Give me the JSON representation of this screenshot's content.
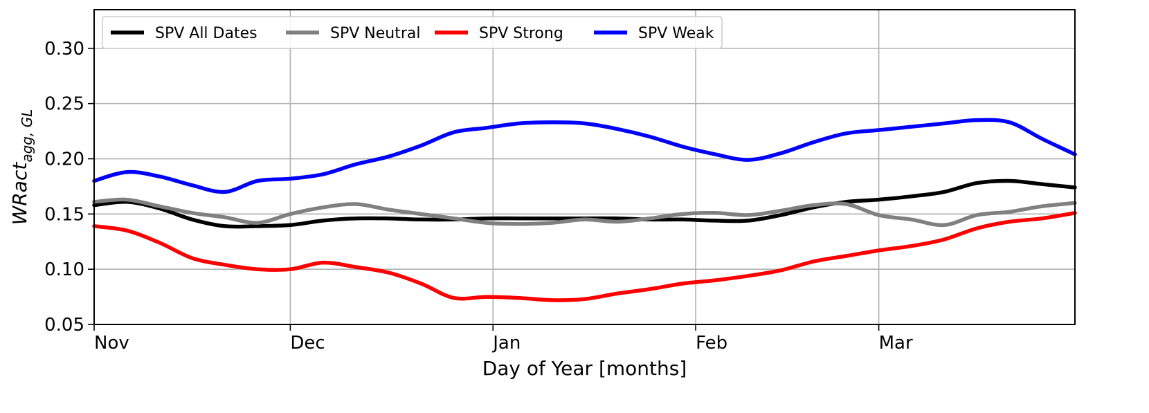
{
  "chart_data": {
    "type": "line",
    "xlabel": "Day of Year [months]",
    "ylabel": "WRact",
    "ylabel_sub": "agg, GL",
    "xlim": [
      0,
      150
    ],
    "ylim": [
      0.05,
      0.335
    ],
    "xticks": [
      {
        "value": 0,
        "label": "Nov"
      },
      {
        "value": 30,
        "label": "Dec"
      },
      {
        "value": 61,
        "label": "Jan"
      },
      {
        "value": 92,
        "label": "Feb"
      },
      {
        "value": 120,
        "label": "Mar"
      }
    ],
    "yticks": [
      {
        "value": 0.05,
        "label": "0.05"
      },
      {
        "value": 0.1,
        "label": "0.10"
      },
      {
        "value": 0.15,
        "label": "0.15"
      },
      {
        "value": 0.2,
        "label": "0.20"
      },
      {
        "value": 0.25,
        "label": "0.25"
      },
      {
        "value": 0.3,
        "label": "0.30"
      }
    ],
    "grid": true,
    "legend_position": "top-left",
    "series": [
      {
        "name": "SPV All Dates",
        "color": "#000000",
        "x": [
          0,
          5,
          10,
          15,
          20,
          25,
          30,
          35,
          40,
          45,
          50,
          55,
          60,
          65,
          70,
          75,
          80,
          85,
          90,
          95,
          100,
          105,
          110,
          115,
          120,
          125,
          130,
          135,
          140,
          145,
          150
        ],
        "y": [
          0.158,
          0.161,
          0.155,
          0.145,
          0.139,
          0.139,
          0.14,
          0.144,
          0.146,
          0.146,
          0.145,
          0.145,
          0.146,
          0.146,
          0.146,
          0.146,
          0.146,
          0.145,
          0.145,
          0.144,
          0.144,
          0.149,
          0.156,
          0.161,
          0.163,
          0.166,
          0.17,
          0.178,
          0.18,
          0.177,
          0.174
        ]
      },
      {
        "name": "SPV Neutral",
        "color": "#808080",
        "x": [
          0,
          5,
          10,
          15,
          20,
          25,
          30,
          35,
          40,
          45,
          50,
          55,
          60,
          65,
          70,
          75,
          80,
          85,
          90,
          95,
          100,
          105,
          110,
          115,
          120,
          125,
          130,
          135,
          140,
          145,
          150
        ],
        "y": [
          0.161,
          0.163,
          0.157,
          0.151,
          0.147,
          0.142,
          0.15,
          0.156,
          0.159,
          0.154,
          0.15,
          0.146,
          0.142,
          0.141,
          0.142,
          0.145,
          0.143,
          0.146,
          0.15,
          0.151,
          0.149,
          0.153,
          0.158,
          0.159,
          0.149,
          0.145,
          0.14,
          0.149,
          0.152,
          0.157,
          0.16
        ]
      },
      {
        "name": "SPV Strong",
        "color": "#ff0000",
        "x": [
          0,
          5,
          10,
          15,
          20,
          25,
          30,
          35,
          40,
          45,
          50,
          55,
          60,
          65,
          70,
          75,
          80,
          85,
          90,
          95,
          100,
          105,
          110,
          115,
          120,
          125,
          130,
          135,
          140,
          145,
          150
        ],
        "y": [
          0.139,
          0.135,
          0.124,
          0.11,
          0.104,
          0.1,
          0.1,
          0.106,
          0.102,
          0.097,
          0.087,
          0.074,
          0.075,
          0.074,
          0.072,
          0.073,
          0.078,
          0.082,
          0.087,
          0.09,
          0.094,
          0.099,
          0.107,
          0.112,
          0.117,
          0.121,
          0.127,
          0.137,
          0.143,
          0.146,
          0.151
        ]
      },
      {
        "name": "SPV Weak",
        "color": "#0000ff",
        "x": [
          0,
          5,
          10,
          15,
          20,
          25,
          30,
          35,
          40,
          45,
          50,
          55,
          60,
          65,
          70,
          75,
          80,
          85,
          90,
          95,
          100,
          105,
          110,
          115,
          120,
          125,
          130,
          135,
          140,
          145,
          150
        ],
        "y": [
          0.18,
          0.188,
          0.184,
          0.176,
          0.17,
          0.18,
          0.182,
          0.186,
          0.195,
          0.202,
          0.212,
          0.224,
          0.228,
          0.232,
          0.233,
          0.232,
          0.227,
          0.22,
          0.211,
          0.204,
          0.199,
          0.205,
          0.215,
          0.223,
          0.226,
          0.229,
          0.232,
          0.235,
          0.233,
          0.218,
          0.204
        ]
      }
    ]
  }
}
